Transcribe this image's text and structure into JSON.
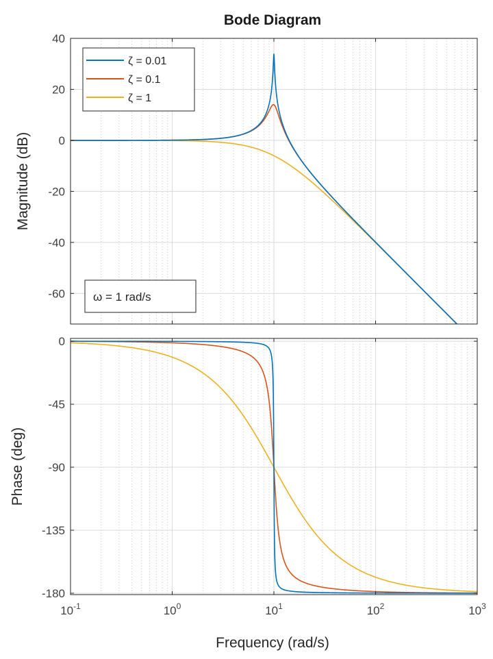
{
  "chart_data": {
    "type": "line",
    "title": "Bode Diagram",
    "xlabel": "Frequency  (rad/s)",
    "x_scale": "log",
    "xlim": [
      0.1,
      1000
    ],
    "x_ticks": [
      {
        "base": "10",
        "exp": "-1",
        "value": 0.1
      },
      {
        "base": "10",
        "exp": "0",
        "value": 1
      },
      {
        "base": "10",
        "exp": "1",
        "value": 10
      },
      {
        "base": "10",
        "exp": "2",
        "value": 100
      },
      {
        "base": "10",
        "exp": "3",
        "value": 1000
      }
    ],
    "grid": true,
    "legend_position": "top-left",
    "colors": [
      "#0072BD",
      "#D95319",
      "#EDB120"
    ],
    "natural_frequency": 10,
    "series": [
      {
        "name": "ζ = 0.01",
        "zeta": 0.01
      },
      {
        "name": "ζ = 0.1",
        "zeta": 0.1
      },
      {
        "name": "ζ = 1",
        "zeta": 1
      }
    ],
    "magnitude": {
      "ylabel": "Magnitude (dB)",
      "ylim": [
        -72,
        40
      ],
      "yticks": [
        40,
        20,
        0,
        -20,
        -40,
        -60
      ],
      "annotation": "ω = 1 rad/s"
    },
    "phase": {
      "ylabel": "Phase (deg)",
      "ylim": [
        -181,
        2
      ],
      "yticks": [
        0,
        -45,
        -90,
        -135,
        -180
      ]
    }
  }
}
